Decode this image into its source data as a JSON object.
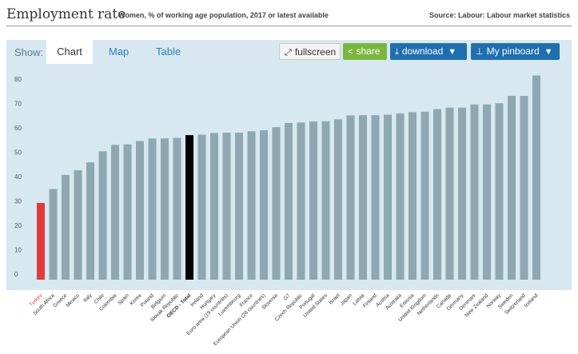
{
  "header": {
    "title": "Employment rate",
    "subtitle": "Women, % of working age population, 2017 or latest available",
    "source": "Source: Labour: Labour market statistics"
  },
  "toolbar": {
    "show_label": "Show:",
    "tabs": [
      {
        "label": "Chart",
        "active": true
      },
      {
        "label": "Map",
        "active": false
      },
      {
        "label": "Table",
        "active": false
      }
    ],
    "fullscreen_label": "fullscreen",
    "share_label": "share",
    "download_label": "download",
    "pinboard_label": "My pinboard",
    "icons": {
      "fullscreen": "expand-arrows-icon",
      "share": "share-icon",
      "download": "download-arrow-icon",
      "pinboard": "pin-icon",
      "caret": "caret-down-icon"
    }
  },
  "colors": {
    "bar": "#8fa7b1",
    "highlight": "#e03b3b",
    "oecd": "#000000",
    "background": "#d7e8f1",
    "accent_blue": "#1f6fb0",
    "accent_green": "#7ab63e"
  },
  "chart_data": {
    "type": "bar",
    "title": "Employment rate",
    "subtitle": "Women, % of working age population, 2017 or latest available",
    "xlabel": "",
    "ylabel": "",
    "ylim": [
      0,
      85
    ],
    "yticks": [
      0,
      10,
      20,
      30,
      40,
      50,
      60,
      70,
      80
    ],
    "grid": false,
    "highlight_category": "Turkey",
    "oecd_category": "OECD - Total",
    "categories": [
      "Turkey",
      "South Africa",
      "Greece",
      "Mexico",
      "Italy",
      "Chile",
      "Colombia",
      "Spain",
      "Korea",
      "Poland",
      "Belgium",
      "Slovak Republic",
      "OECD - Total",
      "Ireland",
      "Hungary",
      "Euro area (19 countries)",
      "Luxembourg",
      "France",
      "European Union (28 countries)",
      "Slovenia",
      "G7",
      "Czech Republic",
      "Portugal",
      "United States",
      "Israel",
      "Japan",
      "Latvia",
      "Finland",
      "Austria",
      "Australia",
      "Estonia",
      "United Kingdom",
      "Netherlands",
      "Canada",
      "Germany",
      "Denmark",
      "New Zealand",
      "Norway",
      "Sweden",
      "Switzerland",
      "Iceland"
    ],
    "values": [
      31.5,
      37.2,
      43.0,
      44.9,
      48.1,
      52.7,
      55.3,
      55.5,
      56.9,
      57.9,
      58.0,
      58.2,
      59.3,
      59.5,
      60.2,
      60.3,
      60.3,
      60.9,
      61.3,
      62.6,
      64.3,
      64.5,
      64.9,
      65.0,
      65.8,
      67.4,
      67.5,
      67.5,
      67.7,
      68.2,
      68.7,
      68.9,
      70.0,
      70.6,
      70.6,
      71.9,
      71.9,
      72.4,
      75.4,
      75.4,
      83.8
    ]
  }
}
